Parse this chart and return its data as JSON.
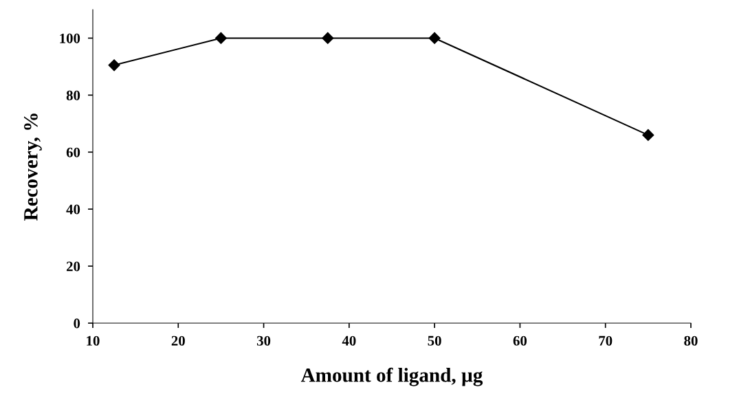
{
  "chart_data": {
    "type": "line",
    "xlabel": "Amount of ligand, µg",
    "ylabel": "Recovery, %",
    "x": [
      12.5,
      25,
      37.5,
      50,
      75
    ],
    "series": [
      {
        "color": "#000000",
        "values": [
          90.5,
          100,
          100,
          100,
          66
        ]
      }
    ],
    "xlim": [
      10,
      80
    ],
    "xticks": [
      10,
      20,
      30,
      40,
      50,
      60,
      70,
      80
    ],
    "ylim": [
      0,
      110
    ],
    "yticks": [
      0,
      20,
      40,
      60,
      80,
      100
    ],
    "marker": "diamond",
    "line_style": "solid",
    "grid": false,
    "legend": false
  }
}
